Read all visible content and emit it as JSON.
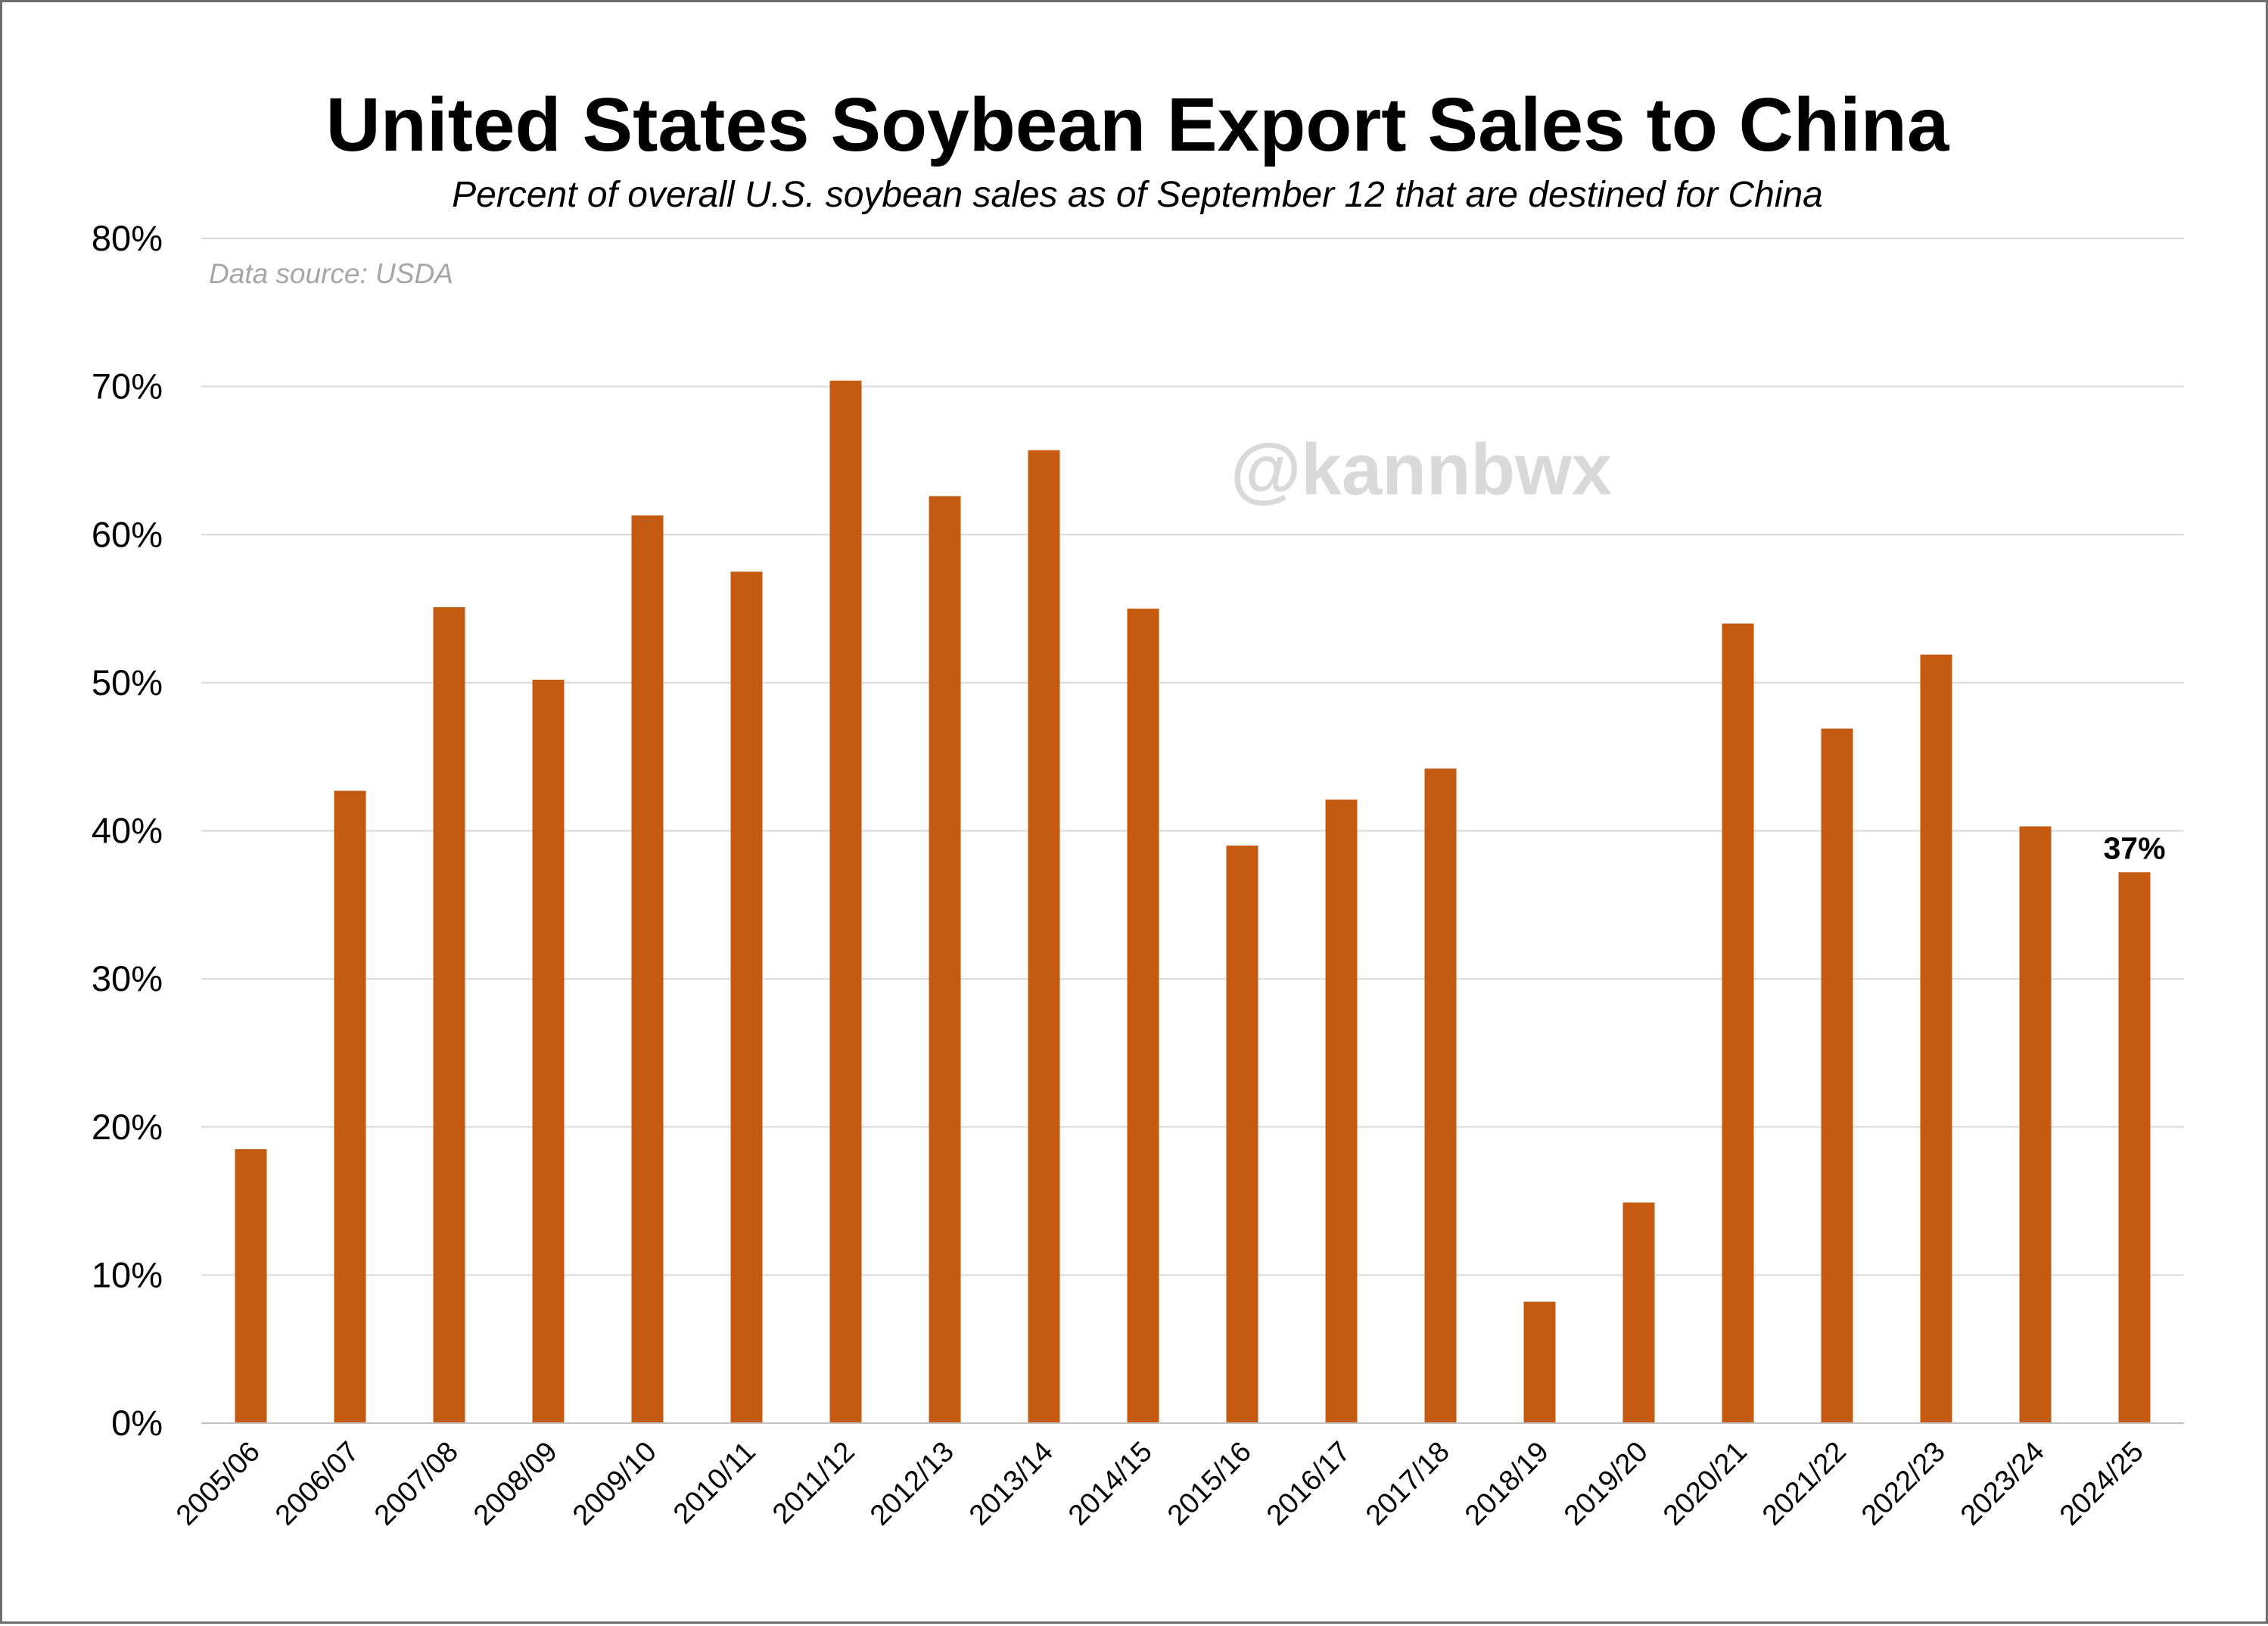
{
  "chart_data": {
    "type": "bar",
    "title": "United States Soybean Export Sales to China",
    "subtitle": "Percent of overall U.S. soybean sales as of September 12 that are destined for China",
    "source_note": "Data source: USDA",
    "watermark": "@kannbwx",
    "xlabel": "",
    "ylabel": "",
    "ylim": [
      0,
      80
    ],
    "yticks": [
      0,
      10,
      20,
      30,
      40,
      50,
      60,
      70,
      80
    ],
    "ytick_labels": [
      "0%",
      "10%",
      "20%",
      "30%",
      "40%",
      "50%",
      "60%",
      "70%",
      "80%"
    ],
    "grid": true,
    "categories": [
      "2005/06",
      "2006/07",
      "2007/08",
      "2008/09",
      "2009/10",
      "2010/11",
      "2011/12",
      "2012/13",
      "2013/14",
      "2014/15",
      "2015/16",
      "2016/17",
      "2017/18",
      "2018/19",
      "2019/20",
      "2020/21",
      "2021/22",
      "2022/23",
      "2023/24",
      "2024/25"
    ],
    "values": [
      18.5,
      42.7,
      55.1,
      50.2,
      61.3,
      57.5,
      70.4,
      62.6,
      65.7,
      55.0,
      39.0,
      42.1,
      44.2,
      8.2,
      14.9,
      54.0,
      46.9,
      51.9,
      40.3,
      37.2
    ],
    "bar_color": "#C55A11",
    "data_labels": [
      {
        "category": "2024/25",
        "text": "37%"
      }
    ]
  }
}
